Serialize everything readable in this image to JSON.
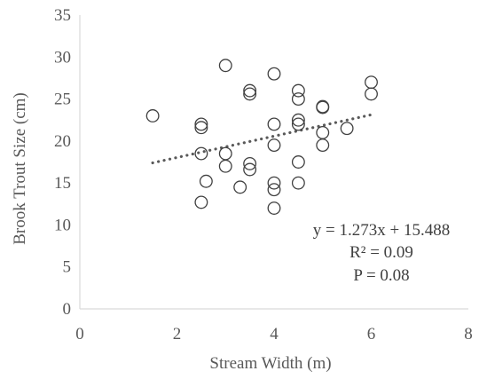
{
  "chart_data": {
    "type": "scatter",
    "title": "",
    "xlabel": "Stream Width (m)",
    "ylabel": "Brook Trout Size (cm)",
    "xlim": [
      0,
      8
    ],
    "ylim": [
      0,
      35
    ],
    "xticks": [
      "0",
      "2",
      "4",
      "6",
      "8"
    ],
    "yticks": [
      "0",
      "5",
      "10",
      "15",
      "20",
      "25",
      "30",
      "35"
    ],
    "grid": false,
    "legend": "none",
    "points": [
      {
        "x": 1.5,
        "y": 23.0
      },
      {
        "x": 2.5,
        "y": 22.0
      },
      {
        "x": 2.5,
        "y": 21.6
      },
      {
        "x": 2.5,
        "y": 18.5
      },
      {
        "x": 2.5,
        "y": 12.7
      },
      {
        "x": 2.6,
        "y": 15.2
      },
      {
        "x": 3.0,
        "y": 29.0
      },
      {
        "x": 3.0,
        "y": 18.5
      },
      {
        "x": 3.0,
        "y": 17.0
      },
      {
        "x": 3.3,
        "y": 14.5
      },
      {
        "x": 3.5,
        "y": 26.0
      },
      {
        "x": 3.5,
        "y": 25.6
      },
      {
        "x": 3.5,
        "y": 17.3
      },
      {
        "x": 3.5,
        "y": 16.6
      },
      {
        "x": 4.0,
        "y": 28.0
      },
      {
        "x": 4.0,
        "y": 22.0
      },
      {
        "x": 4.0,
        "y": 19.5
      },
      {
        "x": 4.0,
        "y": 15.0
      },
      {
        "x": 4.0,
        "y": 14.2
      },
      {
        "x": 4.0,
        "y": 12.0
      },
      {
        "x": 4.5,
        "y": 26.0
      },
      {
        "x": 4.5,
        "y": 25.0
      },
      {
        "x": 4.5,
        "y": 22.5
      },
      {
        "x": 4.5,
        "y": 22.0
      },
      {
        "x": 4.5,
        "y": 17.5
      },
      {
        "x": 4.5,
        "y": 15.0
      },
      {
        "x": 5.0,
        "y": 24.0
      },
      {
        "x": 5.0,
        "y": 24.1
      },
      {
        "x": 5.0,
        "y": 21.0
      },
      {
        "x": 5.0,
        "y": 19.5
      },
      {
        "x": 5.5,
        "y": 21.5
      },
      {
        "x": 6.0,
        "y": 27.0
      },
      {
        "x": 6.0,
        "y": 25.6
      }
    ],
    "trendline": {
      "slope": 1.273,
      "intercept": 15.488,
      "x_range": [
        1.5,
        6.0
      ],
      "style": "dotted"
    },
    "annotations": [
      "y = 1.273x + 15.488",
      "R² = 0.09",
      "P = 0.08"
    ],
    "colors": {
      "axis": "#d9d9d9",
      "marker": "#404040",
      "trend": "#595959",
      "text": "#595959"
    }
  }
}
